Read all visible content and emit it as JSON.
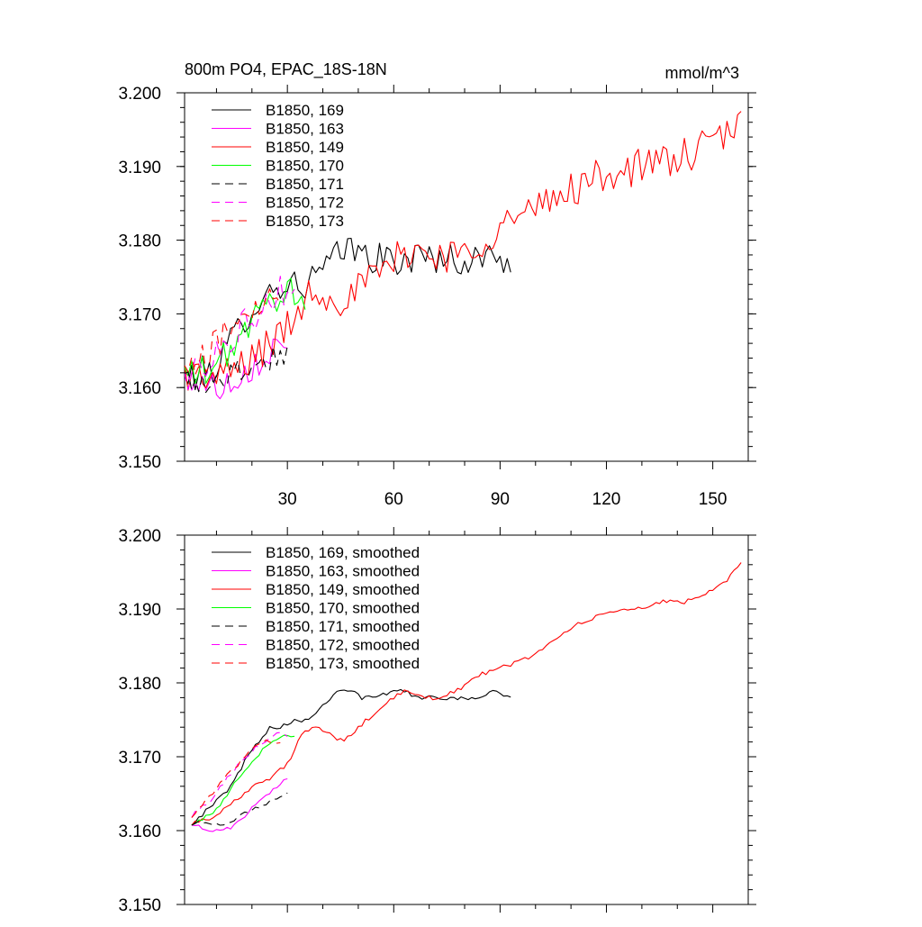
{
  "chart_data": [
    {
      "type": "line",
      "title": "800m PO4, EPAC_18S-18N",
      "units": "mmol/m^3",
      "xlim": [
        1,
        160
      ],
      "ylim": [
        3.15,
        3.2
      ],
      "xticks": [
        30,
        60,
        90,
        120,
        150
      ],
      "xtick_labels": [
        "30",
        "60",
        "90",
        "120",
        "150"
      ],
      "yticks": [
        3.15,
        3.16,
        3.17,
        3.18,
        3.19,
        3.2
      ],
      "ytick_labels": [
        "3.150",
        "3.160",
        "3.170",
        "3.180",
        "3.190",
        "3.200"
      ],
      "legend_position": "top-left",
      "series": [
        {
          "name": "B1850, 169",
          "color": "#000000",
          "dash": "solid",
          "noise": 0.0022,
          "anchors": [
            [
              1,
              3.161
            ],
            [
              10,
              3.163
            ],
            [
              20,
              3.171
            ],
            [
              28,
              3.174
            ],
            [
              35,
              3.174
            ],
            [
              40,
              3.176
            ],
            [
              47,
              3.179
            ],
            [
              52,
              3.178
            ],
            [
              60,
              3.177
            ],
            [
              70,
              3.178
            ],
            [
              80,
              3.177
            ],
            [
              88,
              3.178
            ],
            [
              93,
              3.177
            ]
          ]
        },
        {
          "name": "B1850, 163",
          "color": "#ff00ff",
          "dash": "solid",
          "noise": 0.0022,
          "anchors": [
            [
              1,
              3.161
            ],
            [
              5,
              3.161
            ],
            [
              10,
              3.16
            ],
            [
              14,
              3.161
            ],
            [
              20,
              3.163
            ],
            [
              25,
              3.165
            ],
            [
              30,
              3.167
            ]
          ]
        },
        {
          "name": "B1850, 149",
          "color": "#ff0000",
          "dash": "solid",
          "noise": 0.0025,
          "anchors": [
            [
              1,
              3.162
            ],
            [
              10,
              3.161
            ],
            [
              20,
              3.164
            ],
            [
              30,
              3.168
            ],
            [
              36,
              3.173
            ],
            [
              40,
              3.173
            ],
            [
              45,
              3.172
            ],
            [
              52,
              3.174
            ],
            [
              60,
              3.177
            ],
            [
              65,
              3.179
            ],
            [
              70,
              3.178
            ],
            [
              80,
              3.178
            ],
            [
              90,
              3.182
            ],
            [
              100,
              3.184
            ],
            [
              110,
              3.187
            ],
            [
              120,
              3.189
            ],
            [
              130,
              3.19
            ],
            [
              140,
              3.191
            ],
            [
              150,
              3.193
            ],
            [
              158,
              3.196
            ]
          ]
        },
        {
          "name": "B1850, 170",
          "color": "#00ff00",
          "dash": "solid",
          "noise": 0.0022,
          "anchors": [
            [
              1,
              3.162
            ],
            [
              8,
              3.162
            ],
            [
              15,
              3.166
            ],
            [
              22,
              3.17
            ],
            [
              28,
              3.173
            ],
            [
              32,
              3.173
            ],
            [
              35,
              3.172
            ]
          ]
        },
        {
          "name": "B1850, 171",
          "color": "#000000",
          "dash": "dashed",
          "noise": 0.0022,
          "anchors": [
            [
              1,
              3.161
            ],
            [
              5,
              3.161
            ],
            [
              10,
              3.161
            ],
            [
              15,
              3.162
            ],
            [
              20,
              3.163
            ],
            [
              25,
              3.164
            ],
            [
              30,
              3.165
            ]
          ]
        },
        {
          "name": "B1850, 172",
          "color": "#ff00ff",
          "dash": "dashed",
          "noise": 0.0022,
          "anchors": [
            [
              1,
              3.161
            ],
            [
              6,
              3.163
            ],
            [
              12,
              3.166
            ],
            [
              18,
              3.169
            ],
            [
              24,
              3.171
            ],
            [
              28,
              3.173
            ],
            [
              32,
              3.173
            ]
          ]
        },
        {
          "name": "B1850, 173",
          "color": "#ff0000",
          "dash": "dashed",
          "noise": 0.0022,
          "anchors": [
            [
              1,
              3.162
            ],
            [
              5,
              3.163
            ],
            [
              10,
              3.166
            ],
            [
              15,
              3.169
            ],
            [
              20,
              3.171
            ],
            [
              24,
              3.172
            ],
            [
              28,
              3.172
            ]
          ]
        }
      ]
    },
    {
      "type": "line",
      "xlim": [
        1,
        160
      ],
      "ylim": [
        3.15,
        3.2
      ],
      "xticks": [
        30,
        60,
        90,
        120,
        150
      ],
      "yticks": [
        3.15,
        3.16,
        3.17,
        3.18,
        3.19,
        3.2
      ],
      "ytick_labels": [
        "3.150",
        "3.160",
        "3.170",
        "3.180",
        "3.190",
        "3.200"
      ],
      "legend_position": "top-left",
      "series": [
        {
          "name": "B1850, 169, smoothed",
          "color": "#000000",
          "dash": "solid",
          "noise": 0.0003,
          "anchors": [
            [
              3,
              3.161
            ],
            [
              8,
              3.163
            ],
            [
              14,
              3.166
            ],
            [
              20,
              3.171
            ],
            [
              25,
              3.174
            ],
            [
              28,
              3.174
            ],
            [
              32,
              3.175
            ],
            [
              36,
              3.175
            ],
            [
              40,
              3.177
            ],
            [
              44,
              3.179
            ],
            [
              48,
              3.179
            ],
            [
              51,
              3.178
            ],
            [
              55,
              3.178
            ],
            [
              60,
              3.179
            ],
            [
              63,
              3.179
            ],
            [
              66,
              3.178
            ],
            [
              70,
              3.178
            ],
            [
              75,
              3.178
            ],
            [
              80,
              3.178
            ],
            [
              85,
              3.178
            ],
            [
              89,
              3.179
            ],
            [
              93,
              3.178
            ]
          ]
        },
        {
          "name": "B1850, 163, smoothed",
          "color": "#ff00ff",
          "dash": "solid",
          "noise": 0.0003,
          "anchors": [
            [
              3,
              3.161
            ],
            [
              7,
              3.16
            ],
            [
              12,
              3.16
            ],
            [
              16,
              3.161
            ],
            [
              20,
              3.163
            ],
            [
              25,
              3.165
            ],
            [
              30,
              3.167
            ]
          ]
        },
        {
          "name": "B1850, 149, smoothed",
          "color": "#ff0000",
          "dash": "solid",
          "noise": 0.0003,
          "anchors": [
            [
              3,
              3.161
            ],
            [
              10,
              3.162
            ],
            [
              15,
              3.164
            ],
            [
              20,
              3.166
            ],
            [
              25,
              3.167
            ],
            [
              30,
              3.169
            ],
            [
              34,
              3.173
            ],
            [
              38,
              3.174
            ],
            [
              42,
              3.173
            ],
            [
              46,
              3.172
            ],
            [
              50,
              3.174
            ],
            [
              55,
              3.176
            ],
            [
              60,
              3.178
            ],
            [
              64,
              3.179
            ],
            [
              68,
              3.178
            ],
            [
              72,
              3.178
            ],
            [
              78,
              3.179
            ],
            [
              84,
              3.181
            ],
            [
              90,
              3.182
            ],
            [
              96,
              3.183
            ],
            [
              100,
              3.184
            ],
            [
              106,
              3.186
            ],
            [
              112,
              3.188
            ],
            [
              118,
              3.189
            ],
            [
              124,
              3.19
            ],
            [
              130,
              3.19
            ],
            [
              136,
              3.191
            ],
            [
              142,
              3.191
            ],
            [
              148,
              3.192
            ],
            [
              154,
              3.194
            ],
            [
              158,
              3.196
            ]
          ]
        },
        {
          "name": "B1850, 170, smoothed",
          "color": "#00ff00",
          "dash": "solid",
          "noise": 0.0003,
          "anchors": [
            [
              3,
              3.161
            ],
            [
              8,
              3.162
            ],
            [
              12,
              3.164
            ],
            [
              16,
              3.167
            ],
            [
              20,
              3.169
            ],
            [
              25,
              3.172
            ],
            [
              29,
              3.173
            ],
            [
              32,
              3.173
            ]
          ]
        },
        {
          "name": "B1850, 171, smoothed",
          "color": "#000000",
          "dash": "dashed",
          "noise": 0.0003,
          "anchors": [
            [
              3,
              3.161
            ],
            [
              7,
              3.161
            ],
            [
              12,
              3.161
            ],
            [
              17,
              3.162
            ],
            [
              21,
              3.163
            ],
            [
              26,
              3.164
            ],
            [
              30,
              3.165
            ]
          ]
        },
        {
          "name": "B1850, 172, smoothed",
          "color": "#ff00ff",
          "dash": "dashed",
          "noise": 0.0003,
          "anchors": [
            [
              3,
              3.162
            ],
            [
              8,
              3.164
            ],
            [
              13,
              3.167
            ],
            [
              18,
              3.17
            ],
            [
              23,
              3.172
            ],
            [
              27,
              3.173
            ],
            [
              30,
              3.173
            ]
          ]
        },
        {
          "name": "B1850, 173, smoothed",
          "color": "#ff0000",
          "dash": "dashed",
          "noise": 0.0003,
          "anchors": [
            [
              3,
              3.162
            ],
            [
              7,
              3.164
            ],
            [
              12,
              3.167
            ],
            [
              16,
              3.169
            ],
            [
              20,
              3.171
            ],
            [
              24,
              3.172
            ],
            [
              28,
              3.172
            ]
          ]
        }
      ]
    }
  ]
}
